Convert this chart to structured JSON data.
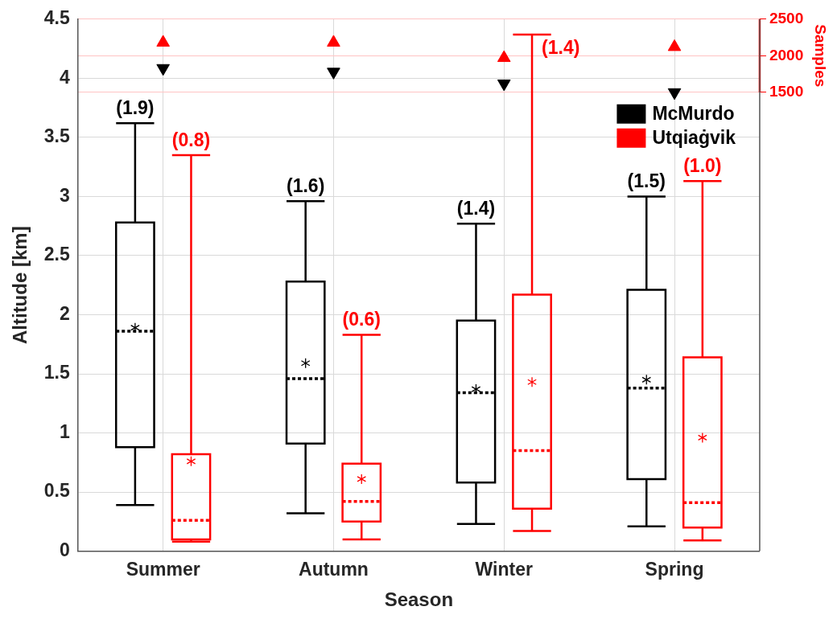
{
  "chart_data": {
    "type": "box",
    "xlabel": "Season",
    "ylabel": "Altitude [km]",
    "y2label": "Samples",
    "categories": [
      "Summer",
      "Autumn",
      "Winter",
      "Spring"
    ],
    "ylim": [
      0,
      4.5
    ],
    "yticks": [
      0,
      0.5,
      1,
      1.5,
      2,
      2.5,
      3,
      3.5,
      4,
      4.5
    ],
    "y2lim": [
      -4770,
      2500
    ],
    "y2ticks": [
      1500,
      2000,
      2500
    ],
    "grid": true,
    "legend": "top right",
    "series": [
      {
        "name": "McMurdo",
        "color": "#000000",
        "boxes": [
          {
            "low": 0.39,
            "q1": 0.88,
            "median": 1.86,
            "q3": 2.78,
            "high": 3.62,
            "mean": 1.89
          },
          {
            "low": 0.32,
            "q1": 0.91,
            "median": 1.46,
            "q3": 2.28,
            "high": 2.96,
            "mean": 1.59
          },
          {
            "low": 0.23,
            "q1": 0.58,
            "median": 1.34,
            "q3": 1.95,
            "high": 2.77,
            "mean": 1.37
          },
          {
            "low": 0.21,
            "q1": 0.61,
            "median": 1.38,
            "q3": 2.21,
            "high": 3.0,
            "mean": 1.45
          }
        ]
      },
      {
        "name": "Utqiaġvik",
        "color": "#ff0000",
        "boxes": [
          {
            "low": 0.08,
            "q1": 0.1,
            "median": 0.26,
            "q3": 0.82,
            "high": 3.35,
            "mean": 0.76
          },
          {
            "low": 0.1,
            "q1": 0.25,
            "median": 0.42,
            "q3": 0.74,
            "high": 1.83,
            "mean": 0.61
          },
          {
            "low": 0.17,
            "q1": 0.36,
            "median": 0.85,
            "q3": 2.17,
            "high": 4.37,
            "mean": 1.43
          },
          {
            "low": 0.09,
            "q1": 0.2,
            "median": 0.41,
            "q3": 1.64,
            "high": 3.13,
            "mean": 0.96
          }
        ]
      },
      {
        "type": "scatter",
        "axis": "y2",
        "marker": "triangle",
        "color": "#000000",
        "values": [
          1830,
          1780,
          1620,
          1500
        ]
      },
      {
        "type": "scatter",
        "axis": "y2",
        "marker": "triangle",
        "color": "#ff0000",
        "values": [
          2180,
          2180,
          1970,
          2120
        ]
      }
    ],
    "annotations": [
      "(1.9)",
      "(0.8)",
      "(1.6)",
      "(0.6)",
      "(1.4)",
      "(1.4)",
      "(1.5)",
      "(1.0)"
    ]
  }
}
